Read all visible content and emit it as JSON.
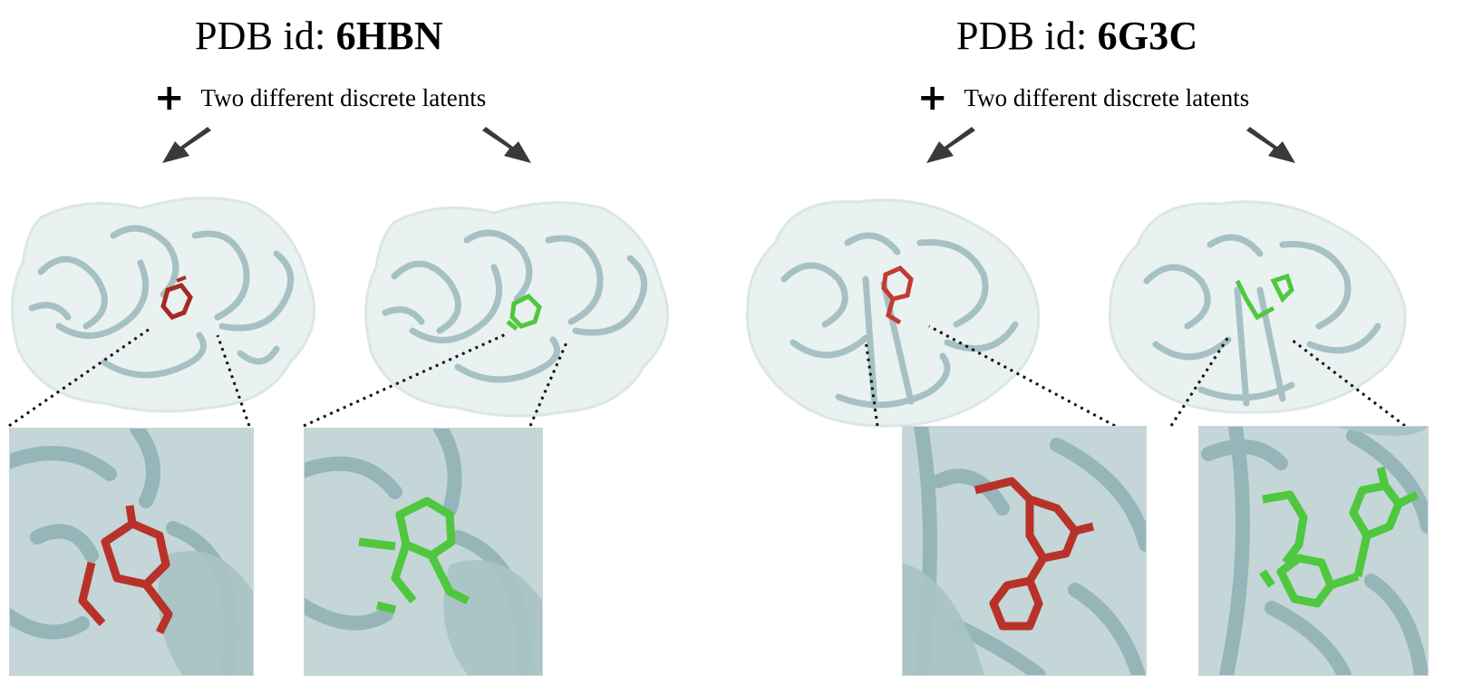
{
  "panels": [
    {
      "title_prefix": "PDB id: ",
      "pdb_id": "6HBN",
      "subtitle": "Two different discrete latents",
      "plus_icon": "plus-icon",
      "ligand_colors": [
        "#c0392b",
        "#4fc73e"
      ]
    },
    {
      "title_prefix": "PDB id: ",
      "pdb_id": "6G3C",
      "subtitle": "Two different discrete latents",
      "plus_icon": "plus-icon",
      "ligand_colors": [
        "#c0392b",
        "#4fc73e"
      ]
    }
  ],
  "colors": {
    "protein_cartoon": "#9fbcbf",
    "protein_surface": "#e6efef",
    "ligand_red": "#c23b32",
    "ligand_green": "#4fc73e",
    "arrow": "#3a3a3a"
  }
}
